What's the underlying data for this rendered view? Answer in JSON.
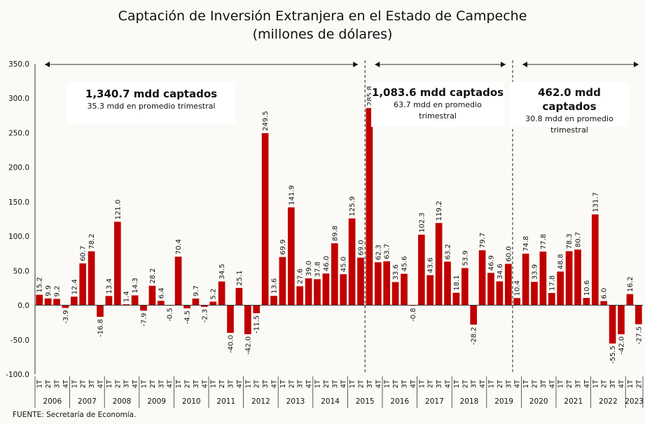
{
  "title": {
    "line1": "Captación de Inversión Extranjera en el Estado de Campeche",
    "line2": "(millones de dólares)"
  },
  "source": "FUENTE: Secretaría de Economía.",
  "annotations": [
    {
      "headline": "1,340.7 mdd captados",
      "detail": "35.3 mdd en promedio trimestral"
    },
    {
      "headline": "1,083.6 mdd captados",
      "detail": "63.7 mdd en promedio trimestral"
    },
    {
      "headline": "462.0 mdd captados",
      "detail": "30.8 mdd en promedio trimestral"
    }
  ],
  "colors": {
    "bar": "#c00000",
    "axis": "#333333",
    "grid": "#444444"
  },
  "chart_data": {
    "type": "bar",
    "ylim": [
      -100,
      350
    ],
    "yticks": [
      "-100.0",
      "-50.0",
      "0.0",
      "50.0",
      "100.0",
      "150.0",
      "200.0",
      "250.0",
      "300.0",
      "350.0"
    ],
    "quarters": [
      "1T",
      "2T",
      "3T",
      "4T",
      "1T",
      "2T",
      "3T",
      "4T",
      "1T",
      "2T",
      "3T",
      "4T",
      "1T",
      "2T",
      "3T",
      "4T",
      "1T",
      "2T",
      "3T",
      "4T",
      "1T",
      "2T",
      "3T",
      "4T",
      "1T",
      "2T",
      "3T",
      "4T",
      "1T",
      "2T",
      "3T",
      "4T",
      "1T",
      "2T",
      "3T",
      "4T",
      "1T",
      "2T",
      "3T",
      "4T",
      "1T",
      "2T",
      "3T",
      "4T",
      "1T",
      "2T",
      "3T",
      "4T",
      "1T",
      "2T",
      "3T",
      "4T",
      "1T",
      "2T",
      "3T",
      "4T",
      "1T",
      "2T",
      "3T",
      "4T",
      "1T",
      "2T",
      "3T",
      "4T",
      "1T",
      "2T",
      "3T",
      "4T",
      "1T",
      "2T"
    ],
    "values": [
      15.2,
      9.9,
      9.2,
      -3.9,
      12.4,
      60.7,
      78.2,
      -16.8,
      13.4,
      121.0,
      1.4,
      14.3,
      -7.9,
      28.2,
      6.4,
      -0.5,
      70.4,
      -4.5,
      9.7,
      -2.3,
      5.2,
      34.5,
      -40.0,
      25.1,
      -42.0,
      -11.5,
      249.5,
      13.6,
      69.9,
      141.9,
      27.6,
      39.0,
      37.8,
      46.0,
      89.8,
      45.0,
      125.9,
      69.0,
      285.8,
      62.3,
      63.7,
      33.6,
      45.6,
      -0.8,
      102.3,
      43.6,
      119.2,
      63.2,
      18.1,
      53.9,
      -28.2,
      79.7,
      46.9,
      34.6,
      60.0,
      10.4,
      74.8,
      33.9,
      77.8,
      17.8,
      48.8,
      78.3,
      80.7,
      10.6,
      131.7,
      6.0,
      -55.5,
      -42.0,
      16.2,
      -27.5
    ],
    "labels": [
      "15.2",
      "9.9",
      "9.2",
      "-3.9",
      "12.4",
      "60.7",
      "78.2",
      "-16.8",
      "13.4",
      "121.0",
      "1.4",
      "14.3",
      "-7.9",
      "28.2",
      "6.4",
      "-0.5",
      "70.4",
      "-4.5",
      "9.7",
      "-2.3",
      "5.2",
      "34.5",
      "-40.0",
      "25.1",
      "-42.0",
      "-11.5",
      "249.5",
      "13.6",
      "69.9",
      "141.9",
      "27.6",
      "39.0",
      "37.8",
      "46.0",
      "89.8",
      "45.0",
      "125.9",
      "69.0",
      "285.8",
      "62.3",
      "63.7",
      "33.6",
      "45.6",
      "-0.8",
      "102.3",
      "43.6",
      "119.2",
      "63.2",
      "18.1",
      "53.9",
      "-28.2",
      "79.7",
      "46.9",
      "34.6",
      "60.0",
      "10.4",
      "74.8",
      "33.9",
      "77.8",
      "17.8",
      "48.8",
      "78.3",
      "80.7",
      "10.6",
      "131.7",
      "6.0",
      "-55.5",
      "-42.0",
      "16.2",
      "-27.5"
    ],
    "years": [
      {
        "label": "2006",
        "count": 4
      },
      {
        "label": "2007",
        "count": 4
      },
      {
        "label": "2008",
        "count": 4
      },
      {
        "label": "2009",
        "count": 4
      },
      {
        "label": "2010",
        "count": 4
      },
      {
        "label": "2011",
        "count": 4
      },
      {
        "label": "2012",
        "count": 4
      },
      {
        "label": "2013",
        "count": 4
      },
      {
        "label": "2014",
        "count": 4
      },
      {
        "label": "2015",
        "count": 4
      },
      {
        "label": "2016",
        "count": 4
      },
      {
        "label": "2017",
        "count": 4
      },
      {
        "label": "2018",
        "count": 4
      },
      {
        "label": "2019",
        "count": 4
      },
      {
        "label": "2020",
        "count": 4
      },
      {
        "label": "2021",
        "count": 4
      },
      {
        "label": "2022",
        "count": 4
      },
      {
        "label": "2023",
        "count": 2
      }
    ],
    "period_breaks_after_index": [
      37,
      54
    ]
  }
}
